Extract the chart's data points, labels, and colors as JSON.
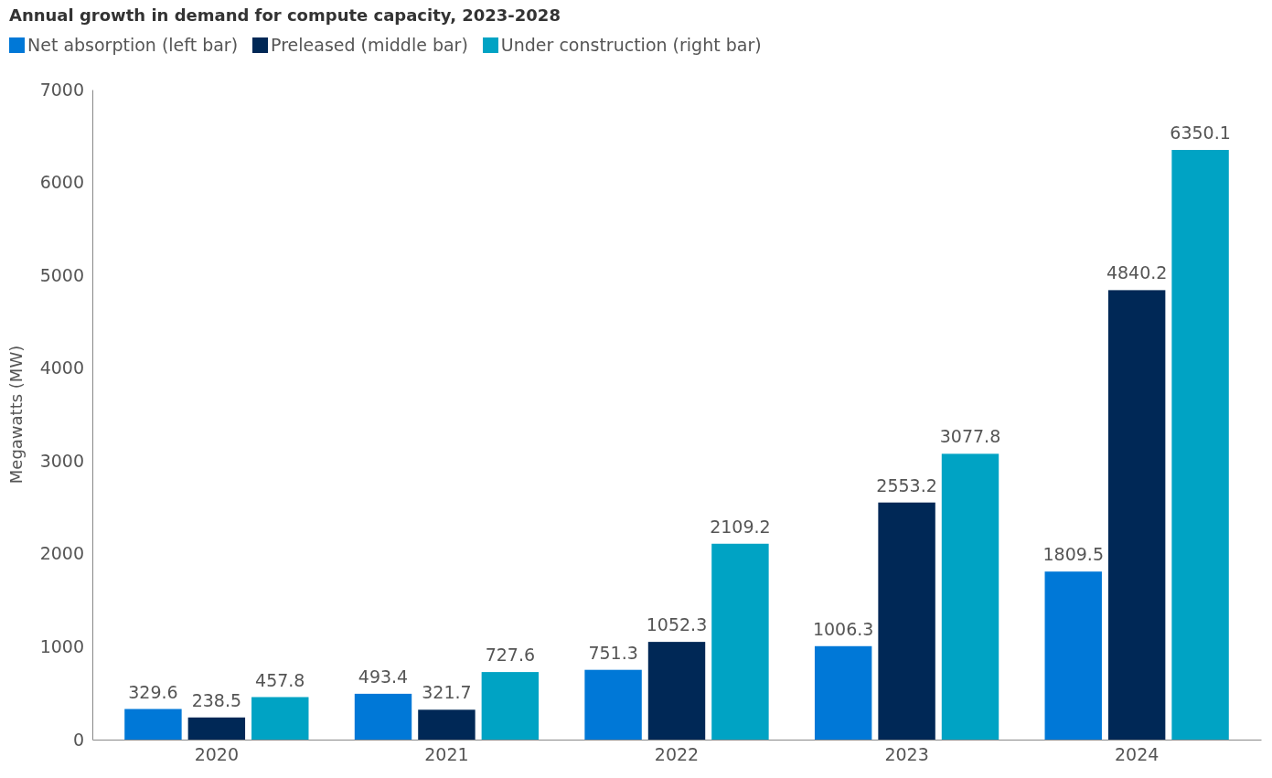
{
  "chart_data": {
    "type": "bar",
    "title": "Annual growth in demand for compute capacity, 2023-2028",
    "ylabel": "Megawatts (MW)",
    "categories": [
      "2020",
      "2021",
      "2022",
      "2023",
      "2024"
    ],
    "series": [
      {
        "name": "Net absorption (left bar)",
        "color": "#0078d7",
        "values": [
          329.6,
          493.4,
          751.3,
          1006.3,
          1809.5
        ]
      },
      {
        "name": "Preleased (middle bar)",
        "color": "#002856",
        "values": [
          238.5,
          321.7,
          1052.3,
          2553.2,
          4840.2
        ]
      },
      {
        "name": "Under construction (right bar)",
        "color": "#00a3c4",
        "values": [
          457.8,
          727.6,
          2109.2,
          3077.8,
          6350.1
        ]
      }
    ],
    "ylim": [
      0,
      7000
    ],
    "yticks": [
      0,
      1000,
      2000,
      3000,
      4000,
      5000,
      6000,
      7000
    ],
    "grid": false,
    "legend": "top left",
    "data_labels": true
  }
}
